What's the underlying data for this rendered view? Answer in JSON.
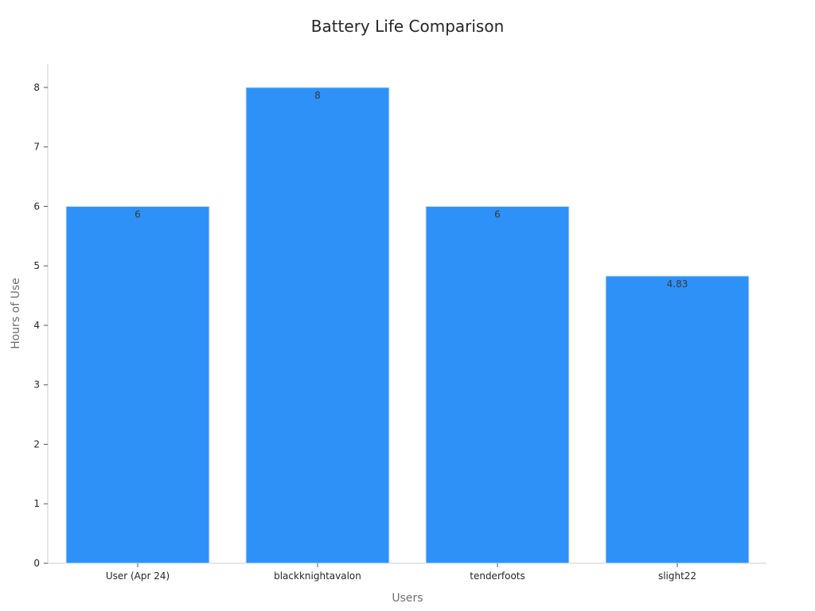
{
  "chart_data": {
    "type": "bar",
    "title": "Battery Life Comparison",
    "xlabel": "Users",
    "ylabel": "Hours of Use",
    "categories": [
      "User (Apr 24)",
      "blackknightavalon",
      "tenderfoots",
      "slight22"
    ],
    "values": [
      6,
      8,
      6,
      4.83
    ],
    "data_labels": [
      "6",
      "8",
      "6",
      "4.83"
    ],
    "ylim": [
      0,
      8.4
    ],
    "yticks": [
      0,
      1,
      2,
      3,
      4,
      5,
      6,
      7,
      8
    ],
    "grid": false,
    "legend": "none",
    "bar_color": "#2e91f7",
    "bar_edge_color": "#d6e9fd",
    "axis_color": "#cccccc"
  }
}
